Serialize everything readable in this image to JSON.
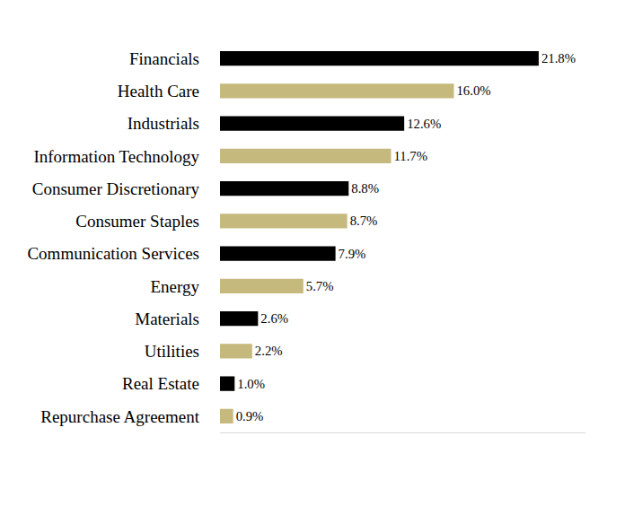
{
  "chart_data": {
    "type": "bar",
    "orientation": "horizontal",
    "categories": [
      "Financials",
      "Health Care",
      "Industrials",
      "Information Technology",
      "Consumer Discretionary",
      "Consumer Staples",
      "Communication Services",
      "Energy",
      "Materials",
      "Utilities",
      "Real Estate",
      "Repurchase Agreement"
    ],
    "values": [
      21.8,
      16.0,
      12.6,
      11.7,
      8.8,
      8.7,
      7.9,
      5.7,
      2.6,
      2.2,
      1.0,
      0.9
    ],
    "value_labels": [
      "21.8%",
      "16.0%",
      "12.6%",
      "11.7%",
      "8.8%",
      "8.7%",
      "7.9%",
      "5.7%",
      "2.6%",
      "2.2%",
      "1.0%",
      "0.9%"
    ],
    "colors": [
      "#000000",
      "#c6b97e",
      "#000000",
      "#c6b97e",
      "#000000",
      "#c6b97e",
      "#000000",
      "#c6b97e",
      "#000000",
      "#c6b97e",
      "#000000",
      "#c6b97e"
    ],
    "xlim": [
      0,
      25
    ],
    "xticks": [],
    "grid": false,
    "data_labels": true,
    "tick_labels": "y"
  }
}
